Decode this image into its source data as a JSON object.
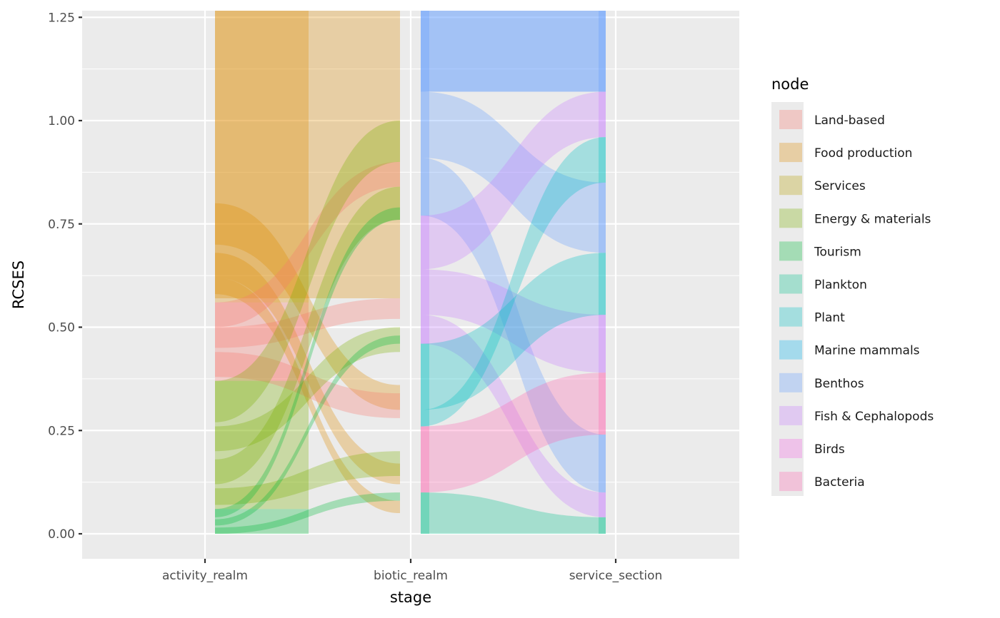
{
  "chart_data": {
    "type": "alluvial",
    "xlabel": "stage",
    "ylabel": "RCSES",
    "x_categories": [
      "activity_realm",
      "biotic_realm",
      "service_section"
    ],
    "y_ticks": [
      "0.00",
      "0.25",
      "0.50",
      "0.75",
      "1.00",
      "1.25"
    ],
    "ylim": [
      -0.06,
      1.27
    ],
    "legend": {
      "title": "node",
      "placement": "right",
      "items": [
        {
          "label": "Land-based",
          "color": "#F8766D"
        },
        {
          "label": "Food production",
          "color": "#DE8C00"
        },
        {
          "label": "Services",
          "color": "#B79F00"
        },
        {
          "label": "Energy & materials",
          "color": "#7CAE00"
        },
        {
          "label": "Tourism",
          "color": "#00BA38"
        },
        {
          "label": "Plankton",
          "color": "#00C08B"
        },
        {
          "label": "Plant",
          "color": "#00BFC4"
        },
        {
          "label": "Marine mammals",
          "color": "#00B4F0"
        },
        {
          "label": "Benthos",
          "color": "#619CFF"
        },
        {
          "label": "Fish & Cephalopods",
          "color": "#C77CFF"
        },
        {
          "label": "Birds",
          "color": "#F564E3"
        },
        {
          "label": "Bacteria",
          "color": "#FF64B0"
        }
      ]
    },
    "fill_opacity": 0.3,
    "stacked_mass": {
      "activity_realm": [
        {
          "node": "Tourism",
          "y0": 0.0,
          "y1": 0.06
        },
        {
          "node": "Energy & materials",
          "y0": 0.06,
          "y1": 0.37
        },
        {
          "node": "Land-based",
          "y0": 0.37,
          "y1": 0.56
        },
        {
          "node": "Food production",
          "y0": 0.56,
          "y1": 1.27
        }
      ],
      "biotic_realm": [
        {
          "node": "Food production",
          "y0": 0.0,
          "y1": 1.27
        },
        {
          "node": "Plankton",
          "y0": 0.0,
          "y1": 0.1
        },
        {
          "node": "Bacteria",
          "y0": 0.1,
          "y1": 0.26
        },
        {
          "node": "Plant",
          "y0": 0.26,
          "y1": 0.46
        },
        {
          "node": "Fish & Cephalopods",
          "y0": 0.46,
          "y1": 0.77
        },
        {
          "node": "Benthos",
          "y0": 0.77,
          "y1": 1.27
        }
      ],
      "service_section": [
        {
          "node": "Plankton",
          "y0": 0.0,
          "y1": 0.04
        },
        {
          "node": "Fish & Cephalopods",
          "y0": 0.04,
          "y1": 0.1
        },
        {
          "node": "Benthos",
          "y0": 0.1,
          "y1": 0.24
        },
        {
          "node": "Bacteria",
          "y0": 0.24,
          "y1": 0.39
        },
        {
          "node": "Fish & Cephalopods",
          "y0": 0.39,
          "y1": 0.53
        },
        {
          "node": "Plant",
          "y0": 0.53,
          "y1": 0.68
        },
        {
          "node": "Benthos",
          "y0": 0.68,
          "y1": 0.85
        },
        {
          "node": "Plant",
          "y0": 0.85,
          "y1": 0.96
        },
        {
          "node": "Fish & Cephalopods",
          "y0": 0.96,
          "y1": 1.07
        },
        {
          "node": "Benthos",
          "y0": 1.07,
          "y1": 1.27
        }
      ]
    },
    "flows": [
      {
        "from_stage": "activity_realm",
        "to_stage": "biotic_realm",
        "node": "Food production",
        "from": [
          0.57,
          1.0
        ],
        "to": [
          0.57,
          1.0
        ]
      },
      {
        "from_stage": "activity_realm",
        "to_stage": "biotic_realm",
        "node": "Food production",
        "from": [
          0.7,
          0.8
        ],
        "to": [
          0.3,
          0.36
        ]
      },
      {
        "from_stage": "activity_realm",
        "to_stage": "biotic_realm",
        "node": "Food production",
        "from": [
          0.62,
          0.68
        ],
        "to": [
          0.12,
          0.17
        ]
      },
      {
        "from_stage": "activity_realm",
        "to_stage": "biotic_realm",
        "node": "Food production",
        "from": [
          0.58,
          0.62
        ],
        "to": [
          0.05,
          0.08
        ]
      },
      {
        "from_stage": "activity_realm",
        "to_stage": "biotic_realm",
        "node": "Land-based",
        "from": [
          0.45,
          0.5
        ],
        "to": [
          0.52,
          0.57
        ]
      },
      {
        "from_stage": "activity_realm",
        "to_stage": "biotic_realm",
        "node": "Land-based",
        "from": [
          0.5,
          0.56
        ],
        "to": [
          0.84,
          0.9
        ]
      },
      {
        "from_stage": "activity_realm",
        "to_stage": "biotic_realm",
        "node": "Land-based",
        "from": [
          0.38,
          0.44
        ],
        "to": [
          0.28,
          0.34
        ]
      },
      {
        "from_stage": "activity_realm",
        "to_stage": "biotic_realm",
        "node": "Energy & materials",
        "from": [
          0.27,
          0.37
        ],
        "to": [
          0.9,
          1.0
        ]
      },
      {
        "from_stage": "activity_realm",
        "to_stage": "biotic_realm",
        "node": "Energy & materials",
        "from": [
          0.2,
          0.26
        ],
        "to": [
          0.44,
          0.5
        ]
      },
      {
        "from_stage": "activity_realm",
        "to_stage": "biotic_realm",
        "node": "Energy & materials",
        "from": [
          0.12,
          0.18
        ],
        "to": [
          0.76,
          0.84
        ]
      },
      {
        "from_stage": "activity_realm",
        "to_stage": "biotic_realm",
        "node": "Energy & materials",
        "from": [
          0.07,
          0.11
        ],
        "to": [
          0.14,
          0.2
        ]
      },
      {
        "from_stage": "activity_realm",
        "to_stage": "biotic_realm",
        "node": "Tourism",
        "from": [
          0.04,
          0.06
        ],
        "to": [
          0.76,
          0.79
        ]
      },
      {
        "from_stage": "activity_realm",
        "to_stage": "biotic_realm",
        "node": "Tourism",
        "from": [
          0.02,
          0.035
        ],
        "to": [
          0.46,
          0.48
        ]
      },
      {
        "from_stage": "activity_realm",
        "to_stage": "biotic_realm",
        "node": "Tourism",
        "from": [
          0.0,
          0.015
        ],
        "to": [
          0.08,
          0.1
        ]
      },
      {
        "from_stage": "biotic_realm",
        "to_stage": "service_section",
        "node": "Benthos",
        "from": [
          1.07,
          1.27
        ],
        "to": [
          1.07,
          1.27
        ]
      },
      {
        "from_stage": "biotic_realm",
        "to_stage": "service_section",
        "node": "Benthos",
        "from": [
          0.91,
          1.07
        ],
        "to": [
          0.68,
          0.85
        ]
      },
      {
        "from_stage": "biotic_realm",
        "to_stage": "service_section",
        "node": "Benthos",
        "from": [
          0.77,
          0.91
        ],
        "to": [
          0.1,
          0.24
        ]
      },
      {
        "from_stage": "biotic_realm",
        "to_stage": "service_section",
        "node": "Fish & Cephalopods",
        "from": [
          0.64,
          0.77
        ],
        "to": [
          0.96,
          1.07
        ]
      },
      {
        "from_stage": "biotic_realm",
        "to_stage": "service_section",
        "node": "Fish & Cephalopods",
        "from": [
          0.53,
          0.64
        ],
        "to": [
          0.39,
          0.53
        ]
      },
      {
        "from_stage": "biotic_realm",
        "to_stage": "service_section",
        "node": "Fish & Cephalopods",
        "from": [
          0.46,
          0.53
        ],
        "to": [
          0.04,
          0.1
        ]
      },
      {
        "from_stage": "biotic_realm",
        "to_stage": "service_section",
        "node": "Plant",
        "from": [
          0.3,
          0.46
        ],
        "to": [
          0.53,
          0.68
        ]
      },
      {
        "from_stage": "biotic_realm",
        "to_stage": "service_section",
        "node": "Plant",
        "from": [
          0.26,
          0.3
        ],
        "to": [
          0.85,
          0.96
        ]
      },
      {
        "from_stage": "biotic_realm",
        "to_stage": "service_section",
        "node": "Bacteria",
        "from": [
          0.1,
          0.26
        ],
        "to": [
          0.24,
          0.39
        ]
      },
      {
        "from_stage": "biotic_realm",
        "to_stage": "service_section",
        "node": "Plankton",
        "from": [
          0.0,
          0.1
        ],
        "to": [
          0.0,
          0.04
        ]
      }
    ],
    "grid": true
  }
}
